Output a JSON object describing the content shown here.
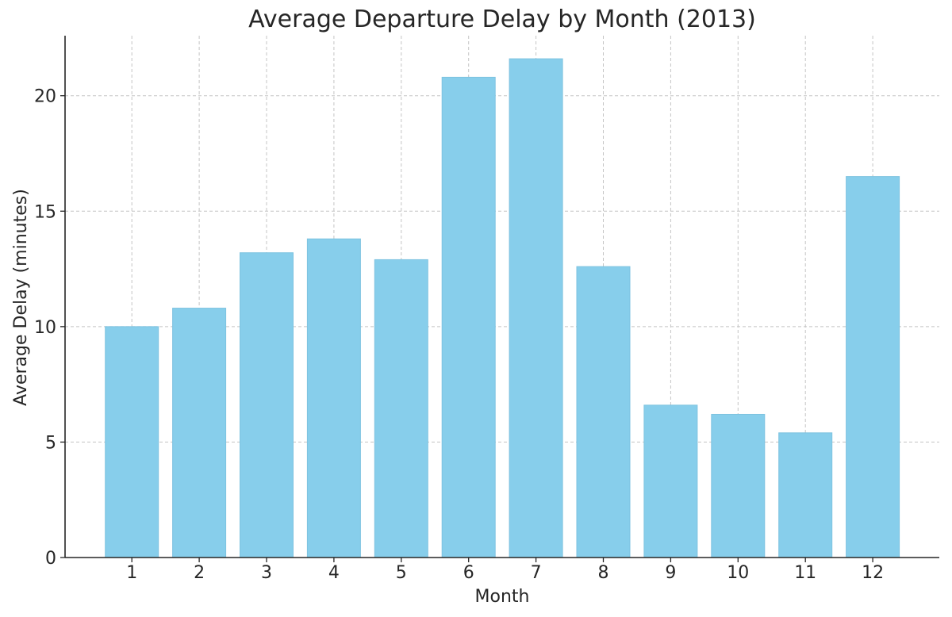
{
  "chart_data": {
    "type": "bar",
    "title": "Average Departure Delay by Month (2013)",
    "xlabel": "Month",
    "ylabel": "Average Delay (minutes)",
    "categories": [
      "1",
      "2",
      "3",
      "4",
      "5",
      "6",
      "7",
      "8",
      "9",
      "10",
      "11",
      "12"
    ],
    "values": [
      10.0,
      10.8,
      13.2,
      13.8,
      12.9,
      20.8,
      21.6,
      12.6,
      6.6,
      6.2,
      5.4,
      16.5
    ],
    "ylim": [
      0,
      22.6
    ],
    "yticks": [
      0,
      5,
      10,
      15,
      20
    ],
    "grid": true,
    "bar_color": "#87CEEB",
    "bar_edge_color": "#7ec3e0",
    "grid_color": "#c4c4c4",
    "axis_color": "#262626"
  }
}
